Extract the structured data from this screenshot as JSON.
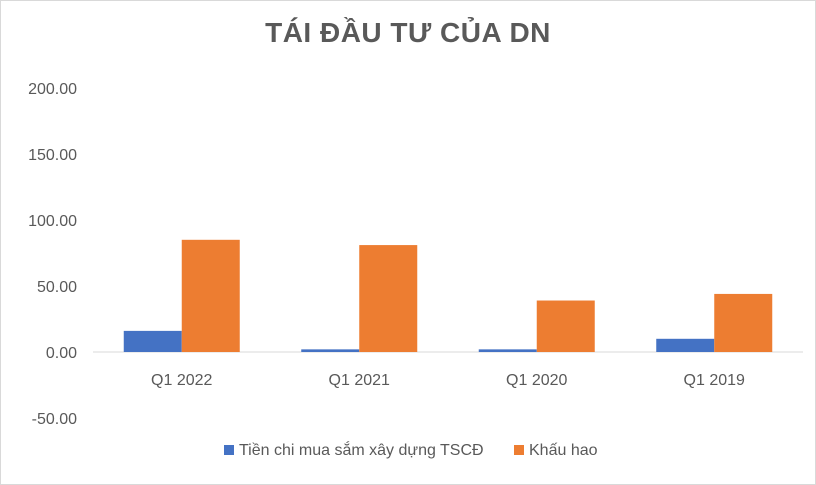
{
  "chart_data": {
    "type": "bar",
    "title": "TÁI ĐẦU TƯ CỦA DN",
    "categories": [
      "Q1 2022",
      "Q1 2021",
      "Q1 2020",
      "Q1 2019"
    ],
    "series": [
      {
        "name": "Tiền chi mua sắm xây dựng TSCĐ",
        "values": [
          16,
          2,
          2,
          10
        ],
        "color": "#4472c4"
      },
      {
        "name": "Khấu hao",
        "values": [
          85,
          81,
          39,
          44
        ],
        "color": "#ed7d31"
      }
    ],
    "ylim": [
      -50,
      200
    ],
    "yticks": [
      "-50.00",
      "0.00",
      "50.00",
      "100.00",
      "150.00",
      "200.00"
    ],
    "xlabel": "",
    "ylabel": "",
    "grid": false,
    "legend_position": "bottom"
  }
}
